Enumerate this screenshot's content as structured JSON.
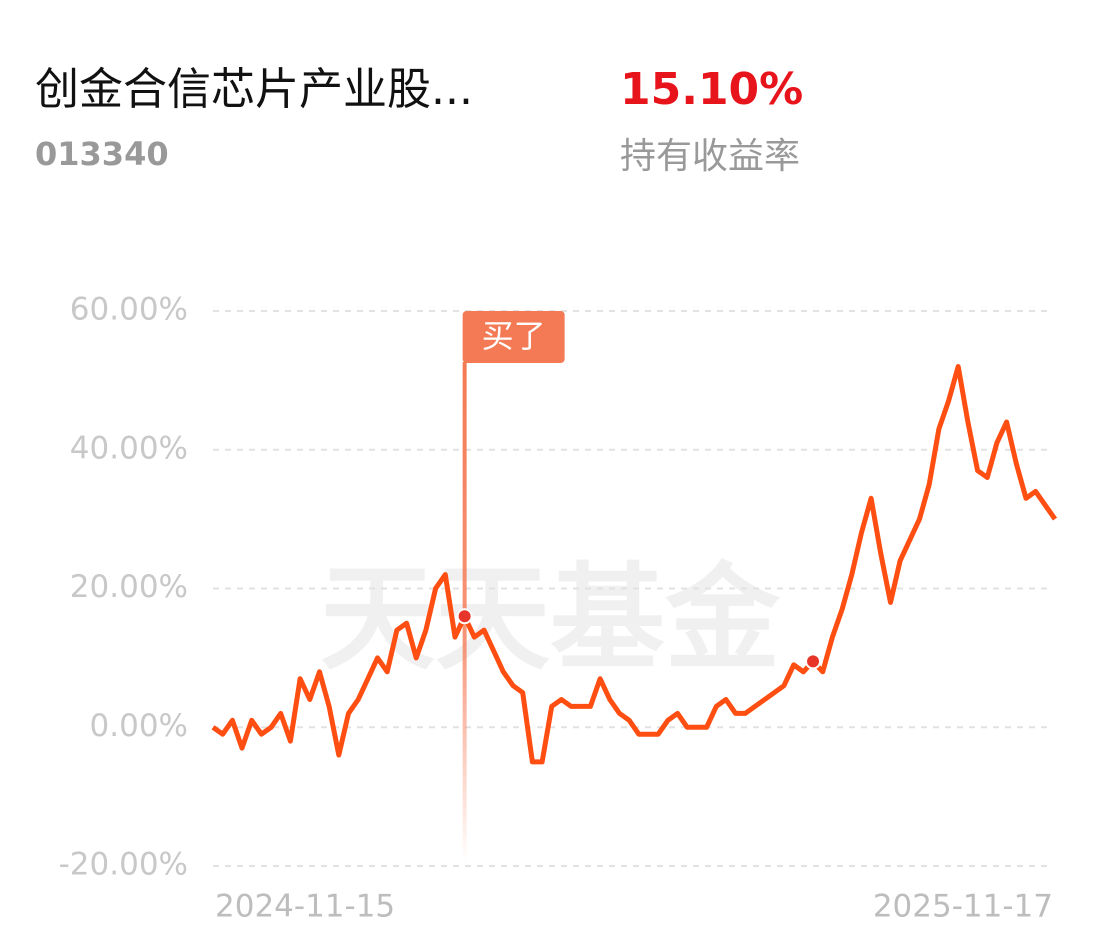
{
  "header": {
    "title": "创金合信芯片产业股...",
    "code": "013340",
    "return": "15.10%",
    "return_label": "持有收益率"
  },
  "chart_data": {
    "type": "line",
    "watermark": "天天基金",
    "color": "#ff4e12",
    "categories": [
      "2024-11-15",
      null,
      null,
      null,
      null,
      null,
      null,
      null,
      null,
      null,
      null,
      null,
      null,
      null,
      null,
      null,
      null,
      null,
      null,
      null,
      null,
      null,
      null,
      null,
      null,
      null,
      null,
      null,
      null,
      null,
      null,
      null,
      null,
      null,
      null,
      null,
      null,
      null,
      null,
      null,
      null,
      null,
      null,
      null,
      null,
      null,
      null,
      null,
      null,
      null,
      null,
      null,
      null,
      null,
      null,
      null,
      null,
      null,
      null,
      null,
      null,
      null,
      null,
      null,
      null,
      null,
      null,
      null,
      null,
      null,
      null,
      null,
      null,
      null,
      null,
      null,
      null,
      null,
      null,
      null,
      null,
      null,
      null,
      null,
      null,
      null,
      null,
      "2025-11-17"
    ],
    "values": [
      0,
      -1,
      1,
      -3,
      1,
      -1,
      0,
      2,
      -2,
      7,
      4,
      8,
      3,
      -4,
      2,
      4,
      7,
      10,
      8,
      14,
      15,
      10,
      14,
      20,
      22,
      13,
      16,
      13,
      14,
      11,
      8,
      6,
      5,
      -5,
      -5,
      3,
      4,
      3,
      3,
      3,
      7,
      4,
      2,
      1,
      -1,
      -1,
      -1,
      1,
      2,
      0,
      0,
      0,
      3,
      4,
      2,
      2,
      3,
      4,
      5,
      6,
      9,
      8,
      9.5,
      8,
      13,
      17,
      22,
      28,
      33,
      25,
      18,
      24,
      27,
      30,
      35,
      43,
      47,
      52,
      44,
      37,
      36,
      41,
      44,
      38,
      33,
      34,
      32,
      30
    ],
    "ylim": [
      -20,
      60
    ],
    "yticks": [
      {
        "value": -20,
        "label": "-20.00%"
      },
      {
        "value": 0,
        "label": "0.00%"
      },
      {
        "value": 20,
        "label": "20.00%"
      },
      {
        "value": 40,
        "label": "40.00%"
      },
      {
        "value": 60,
        "label": "60.00%"
      }
    ],
    "grid": true,
    "markers": [
      {
        "label": "买了",
        "index": 26
      },
      {
        "index": 62
      }
    ]
  }
}
